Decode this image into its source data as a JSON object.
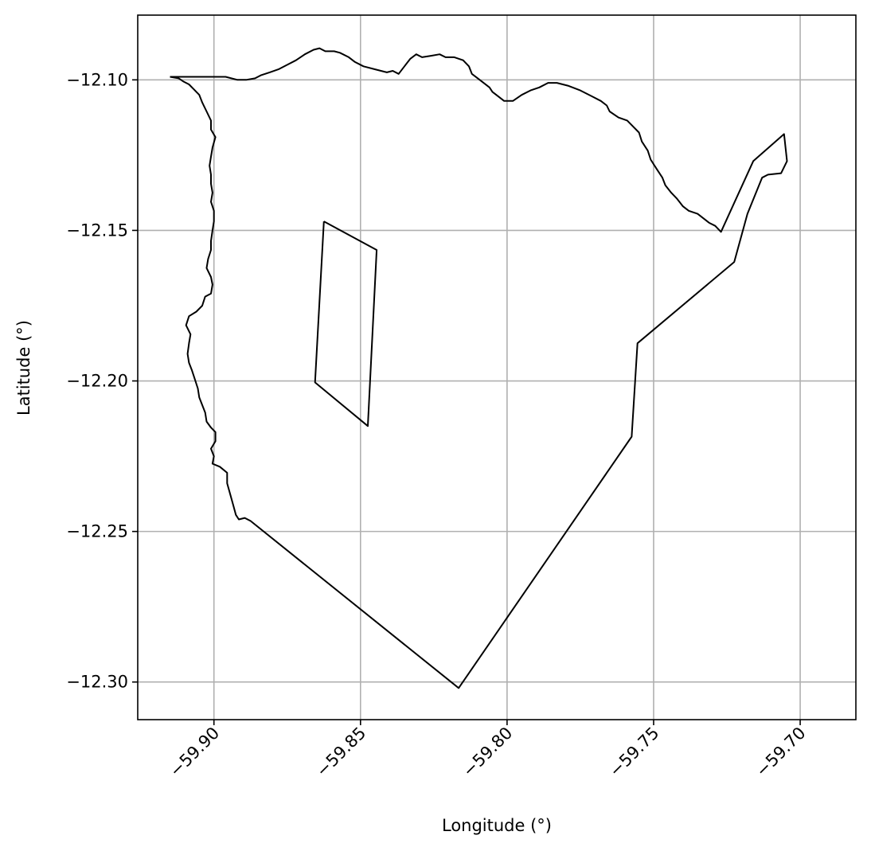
{
  "chart_data": {
    "type": "line",
    "xlabel": "Longitude (°)",
    "ylabel": "Latitude (°)",
    "xlim": [
      -59.926,
      -59.681
    ],
    "ylim": [
      -12.3125,
      -12.0785
    ],
    "grid": true,
    "xticks": [
      -59.9,
      -59.85,
      -59.8,
      -59.75,
      -59.7
    ],
    "xtick_labels": [
      "−59.90",
      "−59.85",
      "−59.80",
      "−59.75",
      "−59.70"
    ],
    "yticks": [
      -12.1,
      -12.15,
      -12.2,
      -12.25,
      -12.3
    ],
    "ytick_labels": [
      "−12.10",
      "−12.15",
      "−12.20",
      "−12.25",
      "−12.30"
    ],
    "line_color": "#000000",
    "series": [
      {
        "points": [
          [
            -59.915,
            -12.099
          ],
          [
            -59.896,
            -12.099
          ],
          [
            -59.892,
            -12.1
          ],
          [
            -59.889,
            -12.1
          ],
          [
            -59.886,
            -12.0995
          ],
          [
            -59.884,
            -12.0985
          ],
          [
            -59.881,
            -12.0975
          ],
          [
            -59.878,
            -12.0965
          ],
          [
            -59.875,
            -12.095
          ],
          [
            -59.872,
            -12.0935
          ],
          [
            -59.869,
            -12.0915
          ],
          [
            -59.866,
            -12.09
          ],
          [
            -59.864,
            -12.0895
          ],
          [
            -59.862,
            -12.0905
          ],
          [
            -59.859,
            -12.0905
          ],
          [
            -59.857,
            -12.091
          ],
          [
            -59.854,
            -12.0925
          ],
          [
            -59.852,
            -12.094
          ],
          [
            -59.849,
            -12.0955
          ],
          [
            -59.845,
            -12.0965
          ],
          [
            -59.841,
            -12.0975
          ],
          [
            -59.839,
            -12.097
          ],
          [
            -59.837,
            -12.098
          ],
          [
            -59.835,
            -12.0955
          ],
          [
            -59.833,
            -12.093
          ],
          [
            -59.831,
            -12.0915
          ],
          [
            -59.829,
            -12.0925
          ],
          [
            -59.826,
            -12.092
          ],
          [
            -59.823,
            -12.0915
          ],
          [
            -59.821,
            -12.0925
          ],
          [
            -59.818,
            -12.0925
          ],
          [
            -59.815,
            -12.0935
          ],
          [
            -59.813,
            -12.0955
          ],
          [
            -59.812,
            -12.098
          ],
          [
            -59.81,
            -12.0995
          ],
          [
            -59.808,
            -12.101
          ],
          [
            -59.806,
            -12.1025
          ],
          [
            -59.805,
            -12.104
          ],
          [
            -59.803,
            -12.1055
          ],
          [
            -59.801,
            -12.107
          ],
          [
            -59.798,
            -12.107
          ],
          [
            -59.795,
            -12.105
          ],
          [
            -59.792,
            -12.1035
          ],
          [
            -59.789,
            -12.1025
          ],
          [
            -59.786,
            -12.101
          ],
          [
            -59.783,
            -12.101
          ],
          [
            -59.779,
            -12.102
          ],
          [
            -59.775,
            -12.1035
          ],
          [
            -59.771,
            -12.1055
          ],
          [
            -59.768,
            -12.107
          ],
          [
            -59.766,
            -12.1085
          ],
          [
            -59.765,
            -12.1105
          ],
          [
            -59.762,
            -12.1125
          ],
          [
            -59.759,
            -12.1135
          ],
          [
            -59.757,
            -12.1155
          ],
          [
            -59.755,
            -12.1175
          ],
          [
            -59.754,
            -12.1205
          ],
          [
            -59.752,
            -12.1235
          ],
          [
            -59.751,
            -12.1265
          ],
          [
            -59.749,
            -12.1295
          ],
          [
            -59.747,
            -12.1325
          ],
          [
            -59.746,
            -12.135
          ],
          [
            -59.744,
            -12.1375
          ],
          [
            -59.742,
            -12.1395
          ],
          [
            -59.74,
            -12.142
          ],
          [
            -59.738,
            -12.1435
          ],
          [
            -59.735,
            -12.1445
          ],
          [
            -59.733,
            -12.146
          ],
          [
            -59.731,
            -12.1475
          ],
          [
            -59.729,
            -12.1485
          ],
          [
            -59.727,
            -12.1505
          ],
          [
            -59.716,
            -12.127
          ],
          [
            -59.7055,
            -12.118
          ],
          [
            -59.7045,
            -12.127
          ],
          [
            -59.7065,
            -12.131
          ],
          [
            -59.711,
            -12.1315
          ],
          [
            -59.713,
            -12.1325
          ],
          [
            -59.718,
            -12.1445
          ],
          [
            -59.7225,
            -12.1605
          ],
          [
            -59.7555,
            -12.1875
          ],
          [
            -59.7575,
            -12.2185
          ],
          [
            -59.8165,
            -12.302
          ],
          [
            -59.8875,
            -12.2465
          ],
          [
            -59.8895,
            -12.2455
          ],
          [
            -59.8915,
            -12.246
          ],
          [
            -59.8925,
            -12.2445
          ],
          [
            -59.8935,
            -12.241
          ],
          [
            -59.8945,
            -12.2375
          ],
          [
            -59.8955,
            -12.234
          ],
          [
            -59.8955,
            -12.2305
          ],
          [
            -59.898,
            -12.2285
          ],
          [
            -59.9005,
            -12.2275
          ],
          [
            -59.9,
            -12.225
          ],
          [
            -59.901,
            -12.2225
          ],
          [
            -59.8995,
            -12.22
          ],
          [
            -59.8995,
            -12.217
          ],
          [
            -59.901,
            -12.2155
          ],
          [
            -59.9025,
            -12.2135
          ],
          [
            -59.903,
            -12.2105
          ],
          [
            -59.904,
            -12.208
          ],
          [
            -59.905,
            -12.2055
          ],
          [
            -59.9055,
            -12.2025
          ],
          [
            -59.9065,
            -12.1995
          ],
          [
            -59.9075,
            -12.1965
          ],
          [
            -59.9085,
            -12.194
          ],
          [
            -59.909,
            -12.191
          ],
          [
            -59.9085,
            -12.1875
          ],
          [
            -59.908,
            -12.1845
          ],
          [
            -59.9095,
            -12.1815
          ],
          [
            -59.9085,
            -12.1785
          ],
          [
            -59.906,
            -12.177
          ],
          [
            -59.904,
            -12.175
          ],
          [
            -59.903,
            -12.172
          ],
          [
            -59.901,
            -12.171
          ],
          [
            -59.9005,
            -12.168
          ],
          [
            -59.901,
            -12.1655
          ],
          [
            -59.9025,
            -12.1625
          ],
          [
            -59.902,
            -12.1595
          ],
          [
            -59.901,
            -12.1565
          ],
          [
            -59.901,
            -12.1535
          ],
          [
            -59.9005,
            -12.15
          ],
          [
            -59.9,
            -12.147
          ],
          [
            -59.9,
            -12.1435
          ],
          [
            -59.901,
            -12.1405
          ],
          [
            -59.9005,
            -12.1375
          ],
          [
            -59.901,
            -12.1345
          ],
          [
            -59.901,
            -12.1315
          ],
          [
            -59.9015,
            -12.1285
          ],
          [
            -59.901,
            -12.1255
          ],
          [
            -59.9005,
            -12.1225
          ],
          [
            -59.8995,
            -12.119
          ],
          [
            -59.901,
            -12.1165
          ],
          [
            -59.901,
            -12.1135
          ],
          [
            -59.9025,
            -12.1105
          ],
          [
            -59.904,
            -12.1075
          ],
          [
            -59.905,
            -12.105
          ],
          [
            -59.907,
            -12.103
          ],
          [
            -59.9085,
            -12.1015
          ],
          [
            -59.9105,
            -12.1005
          ],
          [
            -59.912,
            -12.0995
          ],
          [
            -59.915,
            -12.099
          ]
        ]
      },
      {
        "points": [
          [
            -59.8625,
            -12.147
          ],
          [
            -59.8445,
            -12.1565
          ],
          [
            -59.8475,
            -12.215
          ],
          [
            -59.8655,
            -12.2005
          ],
          [
            -59.8625,
            -12.147
          ]
        ]
      }
    ]
  }
}
